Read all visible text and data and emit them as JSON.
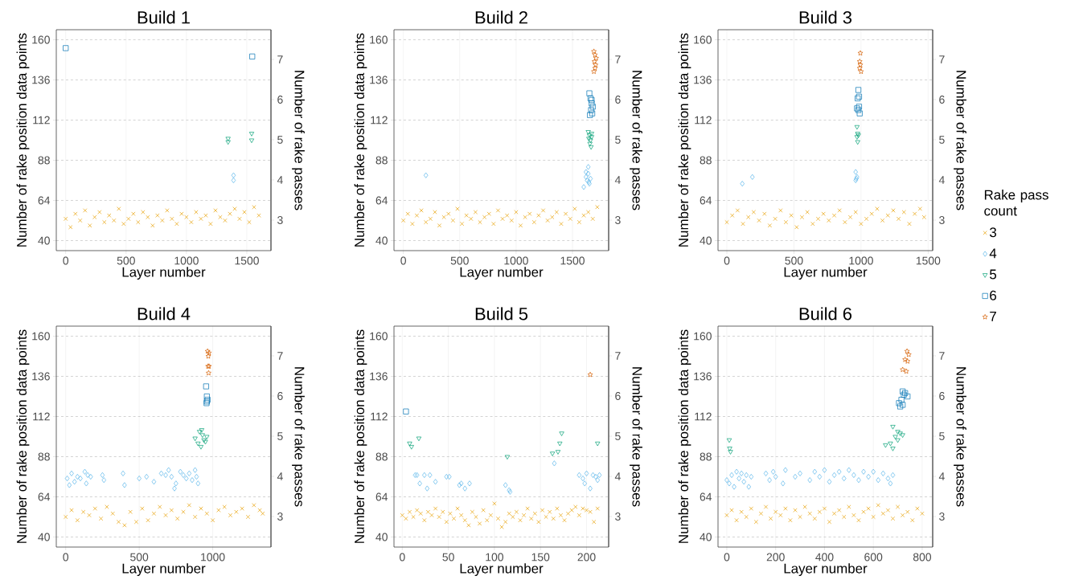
{
  "chart_data": [
    {
      "type": "scatter",
      "title": "Build 1",
      "xlabel": "Layer number",
      "ylabel": "Number of rake position data points",
      "y2label": "Number of rake passes",
      "xlim": [
        -78,
        1700
      ],
      "xticks": [
        0,
        500,
        1000,
        1500
      ],
      "ylim": [
        34,
        166
      ],
      "yticks": [
        40,
        64,
        88,
        112,
        136,
        160
      ],
      "y2lim": [
        2.24,
        7.74
      ],
      "y2ticks": [
        3,
        4,
        5,
        6,
        7
      ],
      "grid": true,
      "series": [
        {
          "color": "#e69f00",
          "marker": "cross",
          "x": [
            0,
            40,
            80,
            120,
            160,
            200,
            240,
            280,
            320,
            360,
            400,
            440,
            480,
            520,
            560,
            600,
            640,
            680,
            720,
            760,
            800,
            840,
            880,
            920,
            960,
            1000,
            1040,
            1080,
            1120,
            1160,
            1200,
            1240,
            1280,
            1320,
            1360,
            1400,
            1440,
            1480,
            1520,
            1560,
            1600
          ],
          "values": [
            53,
            48,
            56,
            52,
            58,
            49,
            54,
            57,
            51,
            55,
            52,
            59,
            50,
            53,
            56,
            51,
            57,
            54,
            49,
            55,
            52,
            58,
            53,
            50,
            56,
            54,
            51,
            57,
            53,
            55,
            50,
            58,
            54,
            52,
            56,
            59,
            53,
            57,
            51,
            60,
            55
          ]
        },
        {
          "color": "#56b4e9",
          "marker": "diamond",
          "x": [
            1390,
            1390
          ],
          "values": [
            76,
            79
          ]
        },
        {
          "color": "#009e73",
          "marker": "triangle",
          "x": [
            1345,
            1345,
            1540,
            1540
          ],
          "values": [
            99,
            101,
            100,
            104
          ]
        },
        {
          "color": "#0072b2",
          "marker": "square",
          "x": [
            0,
            1545
          ],
          "values": [
            155,
            150
          ]
        }
      ]
    },
    {
      "type": "scatter",
      "title": "Build 2",
      "xlabel": "Layer number",
      "ylabel": "Number of rake position data points",
      "y2label": "Number of rake passes",
      "xlim": [
        -83,
        1821
      ],
      "xticks": [
        0,
        500,
        1000,
        1500
      ],
      "ylim": [
        34,
        166
      ],
      "yticks": [
        40,
        64,
        88,
        112,
        136,
        160
      ],
      "y2lim": [
        2.24,
        7.74
      ],
      "y2ticks": [
        3,
        4,
        5,
        6,
        7
      ],
      "grid": true,
      "series": [
        {
          "color": "#e69f00",
          "marker": "cross",
          "x": [
            0,
            40,
            80,
            120,
            160,
            200,
            240,
            280,
            320,
            360,
            400,
            440,
            480,
            520,
            560,
            600,
            640,
            680,
            720,
            760,
            800,
            840,
            880,
            920,
            960,
            1000,
            1040,
            1080,
            1120,
            1160,
            1200,
            1240,
            1280,
            1320,
            1360,
            1400,
            1440,
            1480,
            1520,
            1560,
            1600,
            1640,
            1680,
            1720
          ],
          "values": [
            52,
            56,
            50,
            55,
            58,
            51,
            53,
            57,
            49,
            54,
            56,
            52,
            59,
            50,
            55,
            53,
            57,
            51,
            54,
            56,
            50,
            58,
            53,
            55,
            52,
            57,
            49,
            54,
            56,
            51,
            55,
            58,
            52,
            54,
            57,
            50,
            56,
            53,
            59,
            51,
            55,
            57,
            53,
            60
          ]
        },
        {
          "color": "#56b4e9",
          "marker": "diamond",
          "x": [
            200,
            1600,
            1620,
            1630,
            1640,
            1650,
            1640,
            1660,
            1620,
            1645
          ],
          "values": [
            79,
            72,
            78,
            76,
            80,
            74,
            84,
            77,
            81,
            75
          ]
        },
        {
          "color": "#009e73",
          "marker": "triangle",
          "x": [
            1640,
            1650,
            1660,
            1670,
            1655,
            1665,
            1645,
            1670
          ],
          "values": [
            105,
            103,
            100,
            104,
            98,
            96,
            101,
            102
          ]
        },
        {
          "color": "#0072b2",
          "marker": "square",
          "x": [
            1650,
            1660,
            1670,
            1680,
            1665,
            1675,
            1655,
            1670
          ],
          "values": [
            128,
            125,
            122,
            120,
            118,
            116,
            115,
            124
          ]
        },
        {
          "color": "#d55e00",
          "marker": "star",
          "x": [
            1690,
            1700,
            1710,
            1695,
            1705,
            1700,
            1690
          ],
          "values": [
            153,
            151,
            149,
            147,
            145,
            143,
            141
          ]
        }
      ]
    },
    {
      "type": "scatter",
      "title": "Build 3",
      "xlabel": "Layer number",
      "ylabel": "Number of rake position data points",
      "y2label": "Number of rake passes",
      "xlim": [
        -66,
        1534
      ],
      "xticks": [
        0,
        500,
        1000,
        1500
      ],
      "ylim": [
        34,
        166
      ],
      "yticks": [
        40,
        64,
        88,
        112,
        136,
        160
      ],
      "y2lim": [
        2.24,
        7.74
      ],
      "y2ticks": [
        3,
        4,
        5,
        6,
        7
      ],
      "grid": true,
      "legend": "right",
      "legend_title": "Rake pass count",
      "series": [
        {
          "name": "3",
          "color": "#e69f00",
          "marker": "cross",
          "x": [
            0,
            40,
            80,
            120,
            160,
            200,
            240,
            280,
            320,
            360,
            400,
            440,
            480,
            520,
            560,
            600,
            640,
            680,
            720,
            760,
            800,
            840,
            880,
            920,
            960,
            1000,
            1040,
            1080,
            1120,
            1160,
            1200,
            1240,
            1280,
            1320,
            1360,
            1400,
            1440,
            1470
          ],
          "values": [
            51,
            55,
            58,
            50,
            54,
            57,
            52,
            56,
            49,
            53,
            58,
            51,
            55,
            48,
            54,
            57,
            50,
            53,
            56,
            52,
            55,
            58,
            51,
            54,
            57,
            50,
            53,
            56,
            59,
            52,
            55,
            58,
            53,
            57,
            50,
            56,
            59,
            54
          ]
        },
        {
          "name": "4",
          "color": "#56b4e9",
          "marker": "diamond",
          "x": [
            115,
            190,
            960,
            965,
            960,
            970
          ],
          "values": [
            74,
            78,
            81,
            77,
            76,
            78
          ]
        },
        {
          "name": "5",
          "color": "#009e73",
          "marker": "triangle",
          "x": [
            970,
            975,
            980,
            970,
            975
          ],
          "values": [
            108,
            104,
            103,
            102,
            99
          ]
        },
        {
          "name": "6",
          "color": "#0072b2",
          "marker": "square",
          "x": [
            980,
            985,
            975,
            970,
            980,
            990,
            985
          ],
          "values": [
            130,
            126,
            125,
            119,
            118,
            116,
            120
          ]
        },
        {
          "name": "7",
          "color": "#d55e00",
          "marker": "star",
          "x": [
            995,
            990,
            995,
            990,
            1000
          ],
          "values": [
            152,
            147,
            145,
            143,
            141
          ]
        }
      ]
    },
    {
      "type": "scatter",
      "title": "Build 4",
      "xlabel": "Layer number",
      "ylabel": "Number of rake position data points",
      "y2label": "Number of rake passes",
      "xlim": [
        -64,
        1396
      ],
      "xticks": [
        0,
        500,
        1000
      ],
      "ylim": [
        34,
        166
      ],
      "yticks": [
        40,
        64,
        88,
        112,
        136,
        160
      ],
      "y2lim": [
        2.24,
        7.74
      ],
      "y2ticks": [
        3,
        4,
        5,
        6,
        7
      ],
      "grid": true,
      "series": [
        {
          "color": "#e69f00",
          "marker": "cross",
          "x": [
            0,
            40,
            80,
            120,
            160,
            200,
            240,
            280,
            320,
            360,
            400,
            440,
            480,
            520,
            560,
            600,
            640,
            680,
            720,
            760,
            800,
            840,
            880,
            920,
            960,
            1000,
            1040,
            1080,
            1120,
            1160,
            1200,
            1240,
            1280,
            1320,
            1340
          ],
          "values": [
            52,
            56,
            50,
            55,
            53,
            57,
            51,
            58,
            54,
            49,
            47,
            55,
            49,
            57,
            50,
            54,
            58,
            53,
            56,
            51,
            55,
            59,
            52,
            57,
            54,
            50,
            56,
            58,
            53,
            55,
            57,
            52,
            59,
            56,
            54
          ]
        },
        {
          "color": "#56b4e9",
          "marker": "diamond",
          "x": [
            10,
            25,
            40,
            60,
            80,
            100,
            130,
            140,
            150,
            170,
            250,
            260,
            390,
            400,
            500,
            550,
            600,
            650,
            680,
            700,
            720,
            740,
            750,
            780,
            800,
            820,
            840,
            860,
            880,
            900,
            890
          ],
          "values": [
            75,
            71,
            78,
            73,
            76,
            75,
            79,
            72,
            77,
            76,
            77,
            74,
            78,
            71,
            75,
            76,
            73,
            78,
            77,
            80,
            76,
            69,
            72,
            79,
            77,
            75,
            78,
            74,
            80,
            72,
            76
          ]
        },
        {
          "color": "#009e73",
          "marker": "triangle",
          "x": [
            880,
            900,
            910,
            920,
            930,
            940,
            950,
            925,
            960
          ],
          "values": [
            99,
            96,
            103,
            94,
            101,
            98,
            97,
            104,
            100
          ]
        },
        {
          "color": "#0072b2",
          "marker": "square",
          "x": [
            955,
            960,
            965,
            960,
            958
          ],
          "values": [
            130,
            124,
            122,
            121,
            120
          ]
        },
        {
          "color": "#d55e00",
          "marker": "star",
          "x": [
            965,
            975,
            970,
            968,
            975,
            972
          ],
          "values": [
            151,
            150,
            148,
            142,
            142,
            138
          ]
        }
      ]
    },
    {
      "type": "scatter",
      "title": "Build 5",
      "xlabel": "Layer number",
      "ylabel": "Number of rake position data points",
      "y2label": "Number of rake passes",
      "xlim": [
        -9,
        224
      ],
      "xticks": [
        0,
        50,
        100,
        150,
        200
      ],
      "ylim": [
        34,
        166
      ],
      "yticks": [
        40,
        64,
        88,
        112,
        136,
        160
      ],
      "y2lim": [
        2.24,
        7.74
      ],
      "y2ticks": [
        3,
        4,
        5,
        6,
        7
      ],
      "grid": true,
      "series": [
        {
          "color": "#e69f00",
          "marker": "cross",
          "x": [
            0,
            4,
            8,
            12,
            16,
            20,
            24,
            28,
            32,
            36,
            40,
            44,
            48,
            52,
            56,
            60,
            64,
            68,
            72,
            76,
            80,
            84,
            88,
            92,
            96,
            100,
            104,
            108,
            112,
            116,
            120,
            124,
            128,
            132,
            136,
            140,
            144,
            148,
            152,
            156,
            160,
            164,
            168,
            172,
            176,
            180,
            184,
            188,
            192,
            196,
            200,
            204,
            208,
            212
          ],
          "values": [
            53,
            51,
            55,
            52,
            56,
            54,
            50,
            55,
            53,
            57,
            52,
            55,
            49,
            54,
            51,
            57,
            53,
            50,
            47,
            55,
            52,
            48,
            56,
            50,
            53,
            60,
            51,
            46,
            49,
            54,
            52,
            55,
            50,
            53,
            57,
            51,
            54,
            49,
            56,
            52,
            55,
            51,
            57,
            53,
            50,
            54,
            56,
            58,
            53,
            57,
            56,
            55,
            49,
            57
          ]
        },
        {
          "color": "#56b4e9",
          "marker": "diamond",
          "x": [
            14,
            16,
            19,
            24,
            27,
            30,
            36,
            48,
            51,
            62,
            64,
            68,
            73,
            112,
            116,
            117,
            165,
            192,
            196,
            198,
            200,
            204,
            207,
            210,
            212,
            214
          ],
          "values": [
            77,
            77,
            72,
            77,
            69,
            77,
            73,
            76,
            76,
            71,
            72,
            69,
            72,
            71,
            68,
            67,
            84,
            77,
            75,
            72,
            78,
            69,
            77,
            76,
            74,
            77
          ]
        },
        {
          "color": "#009e73",
          "marker": "triangle",
          "x": [
            8,
            10,
            18,
            114,
            163,
            169,
            171,
            173,
            212
          ],
          "values": [
            96,
            94,
            99,
            88,
            90,
            91,
            96,
            102,
            96
          ]
        },
        {
          "color": "#0072b2",
          "marker": "square",
          "x": [
            4
          ],
          "values": [
            115
          ]
        },
        {
          "color": "#d55e00",
          "marker": "star",
          "x": [
            204
          ],
          "values": [
            137
          ]
        }
      ]
    },
    {
      "type": "scatter",
      "title": "Build 6",
      "xlabel": "Layer number",
      "ylabel": "Number of rake position data points",
      "y2label": "Number of rake passes",
      "xlim": [
        -36,
        843
      ],
      "xticks": [
        0,
        200,
        400,
        600,
        800
      ],
      "ylim": [
        34,
        166
      ],
      "yticks": [
        40,
        64,
        88,
        112,
        136,
        160
      ],
      "y2lim": [
        2.24,
        7.74
      ],
      "y2ticks": [
        3,
        4,
        5,
        6,
        7
      ],
      "grid": true,
      "series": [
        {
          "color": "#e69f00",
          "marker": "cross",
          "x": [
            0,
            20,
            40,
            60,
            80,
            100,
            120,
            140,
            160,
            180,
            200,
            220,
            240,
            260,
            280,
            300,
            320,
            340,
            360,
            380,
            400,
            420,
            440,
            460,
            480,
            500,
            520,
            540,
            560,
            580,
            600,
            620,
            640,
            660,
            680,
            700,
            720,
            740,
            760,
            780,
            800
          ],
          "values": [
            53,
            56,
            50,
            55,
            52,
            57,
            49,
            54,
            58,
            51,
            55,
            53,
            57,
            50,
            56,
            52,
            58,
            54,
            51,
            55,
            57,
            49,
            54,
            56,
            52,
            58,
            53,
            50,
            55,
            57,
            52,
            59,
            54,
            56,
            51,
            58,
            53,
            55,
            50,
            57,
            54
          ]
        },
        {
          "color": "#56b4e9",
          "marker": "diamond",
          "x": [
            0,
            10,
            20,
            30,
            40,
            50,
            60,
            70,
            80,
            90,
            100,
            160,
            175,
            190,
            200,
            230,
            240,
            280,
            300,
            340,
            360,
            380,
            400,
            420,
            440,
            460,
            480,
            500,
            520,
            540,
            560,
            580,
            600,
            620,
            640,
            660,
            670,
            680
          ],
          "values": [
            74,
            72,
            77,
            70,
            79,
            75,
            78,
            73,
            77,
            70,
            76,
            78,
            74,
            79,
            76,
            72,
            80,
            76,
            78,
            74,
            79,
            76,
            80,
            73,
            77,
            79,
            75,
            80,
            77,
            74,
            79,
            76,
            79,
            74,
            78,
            75,
            72,
            77
          ]
        },
        {
          "color": "#009e73",
          "marker": "triangle",
          "x": [
            10,
            12,
            15,
            650,
            670,
            680,
            690,
            700,
            710,
            680,
            700,
            720
          ],
          "values": [
            98,
            93,
            91,
            95,
            96,
            93,
            100,
            98,
            102,
            106,
            103,
            101
          ]
        },
        {
          "color": "#0072b2",
          "marker": "square",
          "x": [
            705,
            715,
            720,
            725,
            730,
            740,
            710,
            720
          ],
          "values": [
            120,
            122,
            127,
            125,
            126,
            124,
            118,
            119
          ]
        },
        {
          "color": "#d55e00",
          "marker": "star",
          "x": [
            720,
            735,
            740,
            745,
            730,
            738
          ],
          "values": [
            140,
            139,
            145,
            149,
            146,
            151
          ]
        }
      ]
    }
  ]
}
